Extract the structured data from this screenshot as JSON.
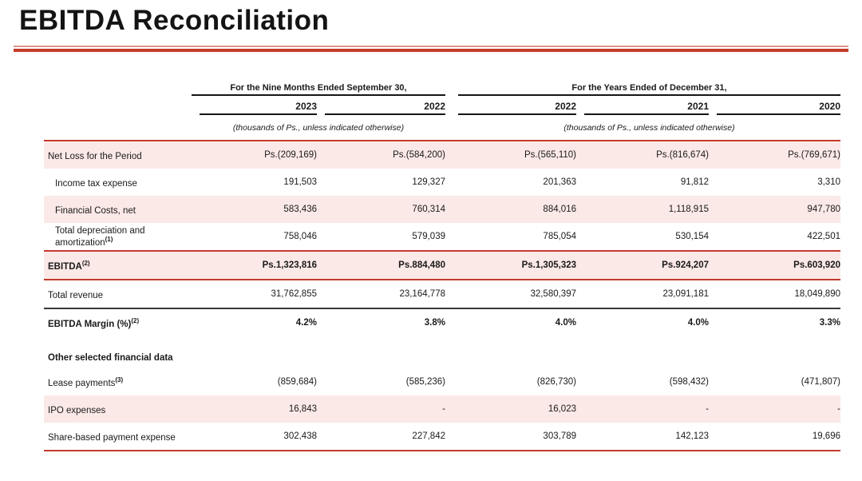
{
  "title": "EBITDA Reconciliation",
  "table": {
    "groups": [
      {
        "label": "For the Nine Months Ended September 30,",
        "note": "(thousands of Ps., unless indicated otherwise)",
        "years": [
          "2023",
          "2022"
        ]
      },
      {
        "label": "For the Years Ended of December 31,",
        "note": "(thousands of Ps., unless indicated otherwise)",
        "years": [
          "2022",
          "2021",
          "2020"
        ]
      }
    ],
    "rows": [
      {
        "label": "Net Loss for the Period",
        "footnote": "",
        "values": [
          "Ps.(209,169)",
          "Ps.(584,200)",
          "Ps.(565,110)",
          "Ps.(816,674)",
          "Ps.(769,671)"
        ]
      },
      {
        "label": "Income tax expense",
        "footnote": "",
        "values": [
          "191,503",
          "129,327",
          "201,363",
          "91,812",
          "3,310"
        ]
      },
      {
        "label": "Financial Costs, net",
        "footnote": "",
        "values": [
          "583,436",
          "760,314",
          "884,016",
          "1,118,915",
          "947,780"
        ]
      },
      {
        "label": "Total depreciation and amortization",
        "footnote": "(1)",
        "values": [
          "758,046",
          "579,039",
          "785,054",
          "530,154",
          "422,501"
        ]
      },
      {
        "label": "EBITDA",
        "footnote": "(2)",
        "values": [
          "Ps.1,323,816",
          "Ps.884,480",
          "Ps.1,305,323",
          "Ps.924,207",
          "Ps.603,920"
        ]
      },
      {
        "label": "Total revenue",
        "footnote": "",
        "values": [
          "31,762,855",
          "23,164,778",
          "32,580,397",
          "23,091,181",
          "18,049,890"
        ]
      },
      {
        "label": "EBITDA Margin (%)",
        "footnote": "(2)",
        "values": [
          "4.2%",
          "3.8%",
          "4.0%",
          "4.0%",
          "3.3%"
        ]
      }
    ],
    "section_heading": "Other selected financial data",
    "other_rows": [
      {
        "label": "Lease payments",
        "footnote": "(3)",
        "values": [
          "(859,684)",
          "(585,236)",
          "(826,730)",
          "(598,432)",
          "(471,807)"
        ]
      },
      {
        "label": "IPO expenses",
        "footnote": "",
        "values": [
          "16,843",
          "-",
          "16,023",
          "-",
          "-"
        ]
      },
      {
        "label": "Share-based payment expense",
        "footnote": "",
        "values": [
          "302,438",
          "227,842",
          "303,789",
          "142,123",
          "19,696"
        ]
      }
    ]
  },
  "colors": {
    "accent_red": "#c43a2c",
    "accent_red_light": "#e0938b",
    "row_pink": "#fbe9e7"
  }
}
